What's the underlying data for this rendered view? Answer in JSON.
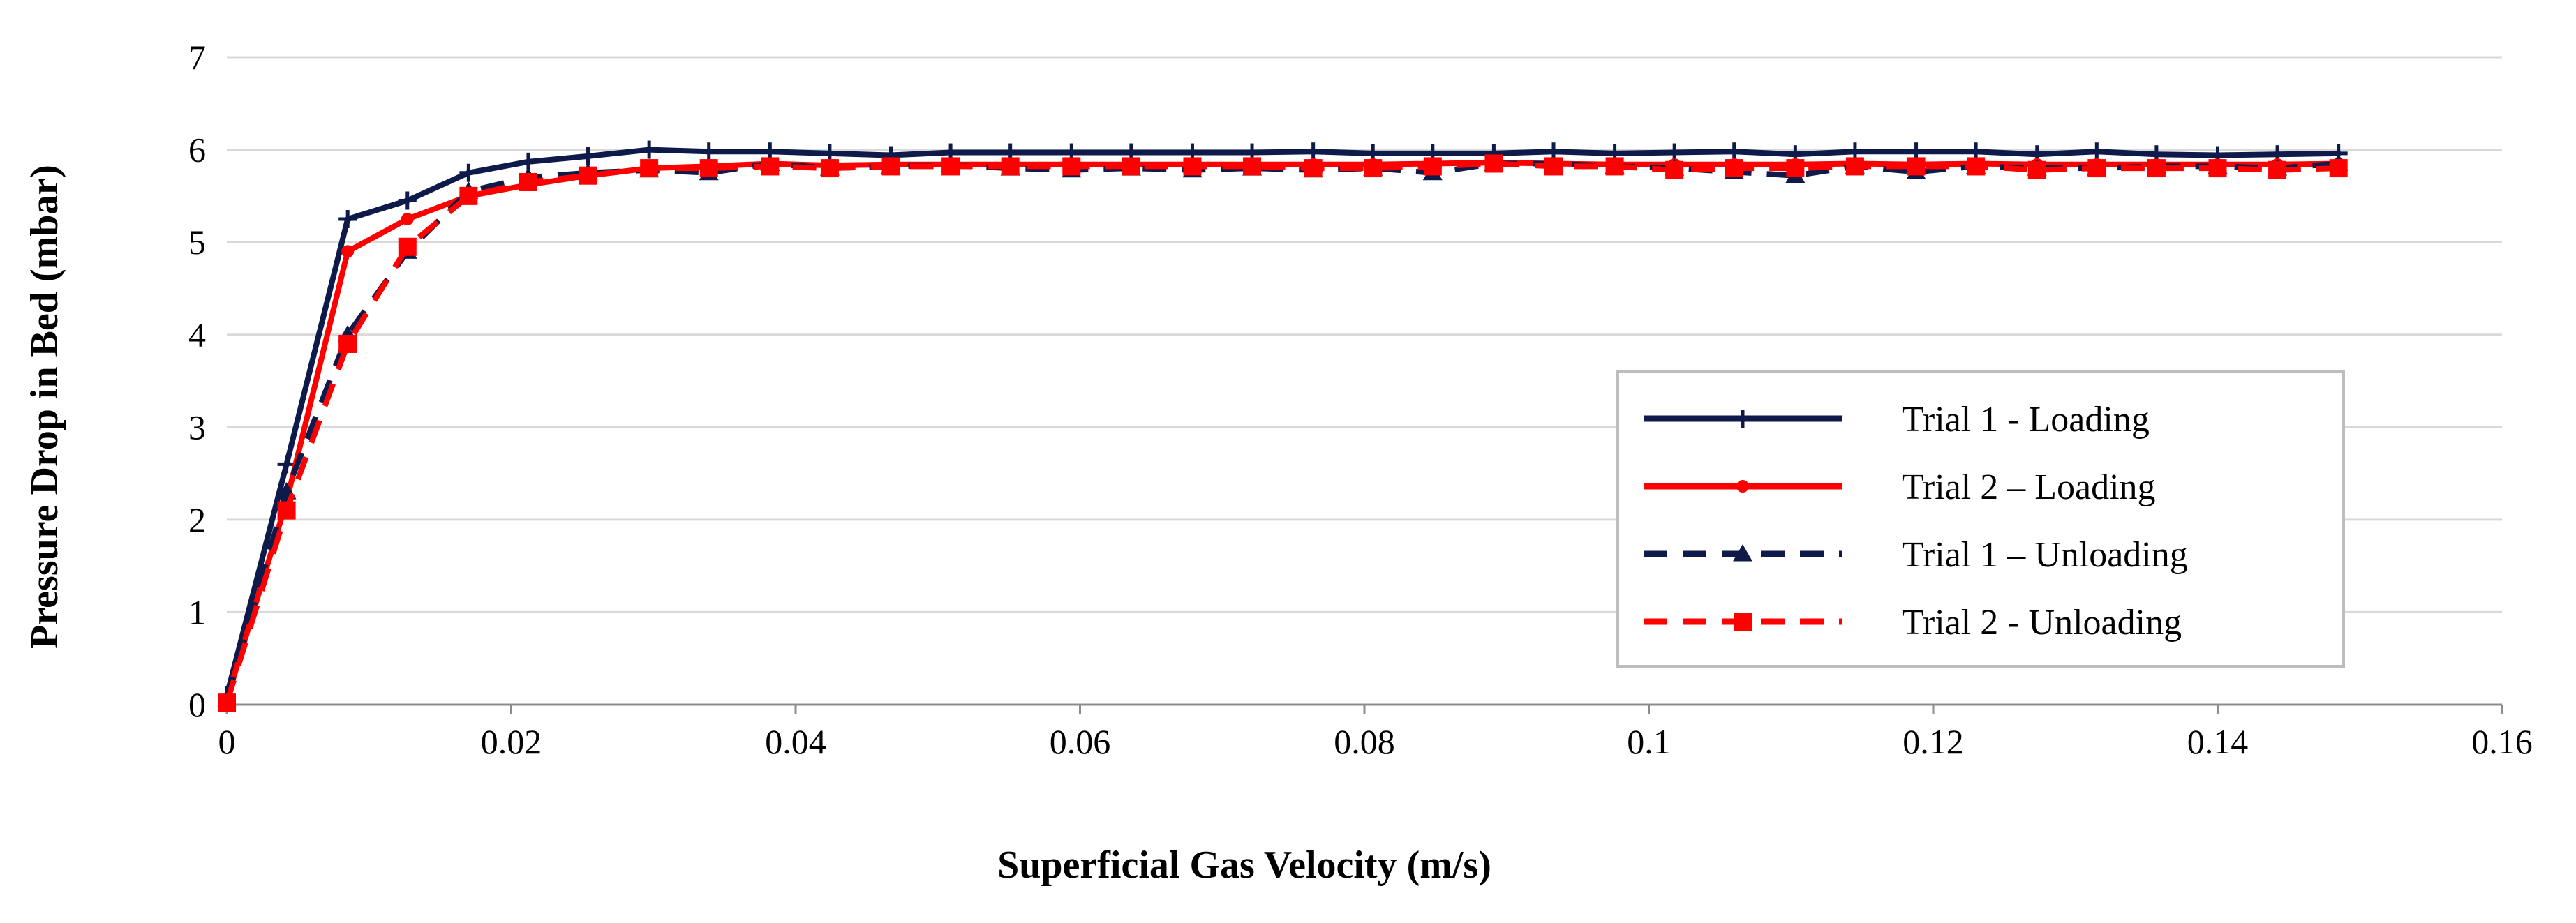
{
  "chart_data": {
    "type": "line",
    "title": "",
    "xlabel": "Superficial  Gas Velocity (m/s)",
    "ylabel": "Pressure Drop in Bed (mbar)",
    "xlim": [
      0,
      0.16
    ],
    "ylim": [
      0,
      7
    ],
    "x_ticks": [
      0,
      0.02,
      0.04,
      0.06,
      0.08,
      0.1,
      0.12,
      0.14,
      0.16
    ],
    "x_tick_labels": [
      "0",
      "0.02",
      "0.04",
      "0.06",
      "0.08",
      "0.1",
      "0.12",
      "0.14",
      "0.16"
    ],
    "y_ticks": [
      0,
      1,
      2,
      3,
      4,
      5,
      6,
      7
    ],
    "y_tick_labels": [
      "0",
      "1",
      "2",
      "3",
      "4",
      "5",
      "6",
      "7"
    ],
    "grid": "horizontal",
    "legend_position": "center-right",
    "series": [
      {
        "name": "Trial 1 - Loading",
        "color": "#0d1a4a",
        "line_style": "solid",
        "marker": "plus",
        "x": [
          0,
          0.0042,
          0.0085,
          0.0127,
          0.017,
          0.0212,
          0.0254,
          0.0297,
          0.0339,
          0.0382,
          0.0424,
          0.0467,
          0.0509,
          0.0551,
          0.0594,
          0.0636,
          0.0679,
          0.0721,
          0.0764,
          0.0806,
          0.0848,
          0.0891,
          0.0933,
          0.0976,
          0.1018,
          0.106,
          0.1103,
          0.1145,
          0.1188,
          0.123,
          0.1273,
          0.1315,
          0.1357,
          0.14,
          0.1442,
          0.1485
        ],
        "y": [
          0.1,
          2.6,
          5.25,
          5.45,
          5.75,
          5.87,
          5.93,
          6.0,
          5.98,
          5.98,
          5.96,
          5.94,
          5.97,
          5.97,
          5.97,
          5.97,
          5.97,
          5.97,
          5.98,
          5.96,
          5.96,
          5.96,
          5.98,
          5.96,
          5.97,
          5.98,
          5.95,
          5.98,
          5.98,
          5.98,
          5.95,
          5.98,
          5.95,
          5.94,
          5.95,
          5.96
        ]
      },
      {
        "name": "Trial 2 – Loading",
        "color": "#ff0000",
        "line_style": "solid",
        "marker": "circle",
        "x": [
          0,
          0.0042,
          0.0085,
          0.0127,
          0.017,
          0.0212,
          0.0254,
          0.0297,
          0.0339,
          0.0382,
          0.0424,
          0.0467,
          0.0509,
          0.0551,
          0.0594,
          0.0636,
          0.0679,
          0.0721,
          0.0764,
          0.0806,
          0.0848,
          0.0891,
          0.0933,
          0.0976,
          0.1018,
          0.106,
          0.1103,
          0.1145,
          0.1188,
          0.123,
          0.1273,
          0.1315,
          0.1357,
          0.14,
          0.1442,
          0.1485
        ],
        "y": [
          0.05,
          2.2,
          4.9,
          5.25,
          5.5,
          5.62,
          5.72,
          5.8,
          5.82,
          5.85,
          5.83,
          5.84,
          5.84,
          5.84,
          5.84,
          5.84,
          5.84,
          5.84,
          5.84,
          5.84,
          5.85,
          5.86,
          5.85,
          5.84,
          5.84,
          5.84,
          5.84,
          5.85,
          5.84,
          5.85,
          5.84,
          5.84,
          5.84,
          5.84,
          5.84,
          5.85
        ]
      },
      {
        "name": "Trial 1 – Unloading",
        "color": "#0d1a4a",
        "line_style": "dashed",
        "marker": "triangle",
        "x": [
          0,
          0.0042,
          0.0085,
          0.0127,
          0.017,
          0.0212,
          0.0254,
          0.0297,
          0.0339,
          0.0382,
          0.0424,
          0.0467,
          0.0509,
          0.0551,
          0.0594,
          0.0636,
          0.0679,
          0.0721,
          0.0764,
          0.0806,
          0.0848,
          0.0891,
          0.0933,
          0.0976,
          0.1018,
          0.106,
          0.1103,
          0.1145,
          0.1188,
          0.123,
          0.1273,
          0.1315,
          0.1357,
          0.14,
          0.1442,
          0.1485
        ],
        "y": [
          0.05,
          2.3,
          4.0,
          4.9,
          5.55,
          5.7,
          5.75,
          5.78,
          5.75,
          5.85,
          5.8,
          5.82,
          5.83,
          5.8,
          5.78,
          5.8,
          5.78,
          5.8,
          5.78,
          5.8,
          5.75,
          5.85,
          5.85,
          5.82,
          5.8,
          5.76,
          5.72,
          5.82,
          5.76,
          5.82,
          5.8,
          5.8,
          5.82,
          5.82,
          5.8,
          5.85
        ]
      },
      {
        "name": "Trial 2 - Unloading",
        "color": "#ff0000",
        "line_style": "dashed",
        "marker": "square",
        "x": [
          0,
          0.0042,
          0.0085,
          0.0127,
          0.017,
          0.0212,
          0.0254,
          0.0297,
          0.0339,
          0.0382,
          0.0424,
          0.0467,
          0.0509,
          0.0551,
          0.0594,
          0.0636,
          0.0679,
          0.0721,
          0.0764,
          0.0806,
          0.0848,
          0.0891,
          0.0933,
          0.0976,
          0.1018,
          0.106,
          0.1103,
          0.1145,
          0.1188,
          0.123,
          0.1273,
          0.1315,
          0.1357,
          0.14,
          0.1442,
          0.1485
        ],
        "y": [
          0.02,
          2.1,
          3.9,
          4.95,
          5.5,
          5.65,
          5.72,
          5.8,
          5.8,
          5.82,
          5.8,
          5.82,
          5.82,
          5.82,
          5.82,
          5.82,
          5.82,
          5.82,
          5.8,
          5.8,
          5.82,
          5.85,
          5.82,
          5.82,
          5.78,
          5.8,
          5.8,
          5.82,
          5.82,
          5.82,
          5.78,
          5.8,
          5.8,
          5.8,
          5.78,
          5.8
        ]
      }
    ]
  }
}
